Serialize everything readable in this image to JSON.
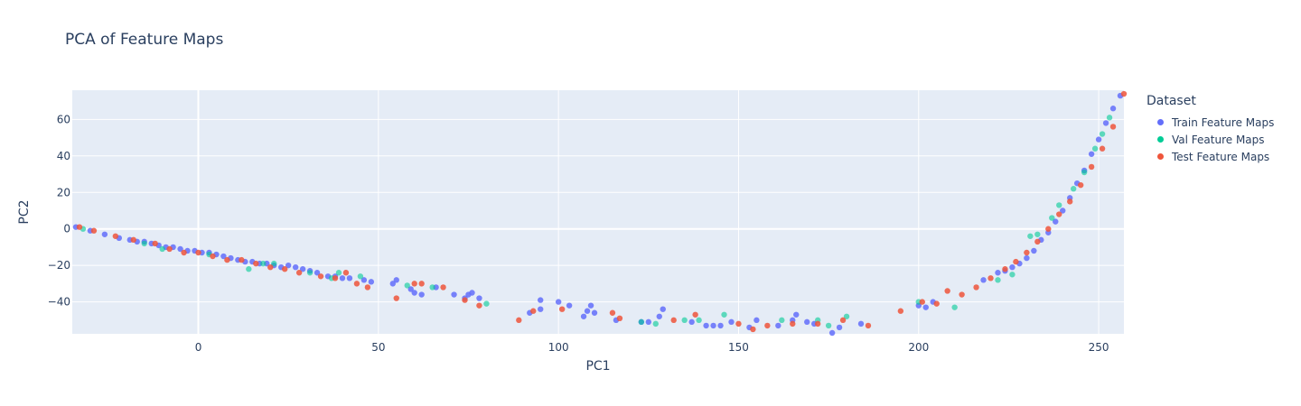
{
  "chart_data": {
    "type": "scatter",
    "title": "PCA of Feature Maps",
    "xlabel": "PC1",
    "ylabel": "PC2",
    "xlim": [
      -35,
      257
    ],
    "ylim": [
      -57.5,
      76
    ],
    "xticks": [
      0,
      50,
      100,
      150,
      200,
      250
    ],
    "yticks": [
      -40,
      -20,
      0,
      20,
      40,
      60
    ],
    "grid": true,
    "legend_title": "Dataset",
    "legend_position": "right",
    "background": "#e5ecf6",
    "series": [
      {
        "name": "Train Feature Maps",
        "color": "#636efa",
        "x": [
          -34,
          -30,
          -26,
          -22,
          -19,
          -17,
          -15,
          -13,
          -11,
          -9,
          -7,
          -5,
          -3,
          -1,
          1,
          3,
          5,
          7,
          9,
          11,
          13,
          15,
          17,
          19,
          21,
          23,
          25,
          27,
          29,
          31,
          33,
          36,
          38,
          40,
          42,
          46,
          48,
          54,
          55,
          59,
          60,
          62,
          66,
          71,
          74,
          75,
          76,
          78,
          92,
          95,
          95,
          100,
          103,
          107,
          108,
          109,
          110,
          116,
          123,
          125,
          128,
          129,
          137,
          141,
          143,
          145,
          148,
          153,
          155,
          161,
          165,
          166,
          169,
          171,
          176,
          178,
          184,
          200,
          202,
          204,
          218,
          222,
          224,
          226,
          228,
          230,
          232,
          234,
          236,
          238,
          240,
          242,
          244,
          246,
          248,
          250,
          252,
          254,
          256
        ],
        "y": [
          1,
          -1,
          -3,
          -5,
          -6,
          -7,
          -7,
          -8,
          -9,
          -10,
          -10,
          -11,
          -12,
          -12,
          -13,
          -13,
          -14,
          -15,
          -16,
          -17,
          -18,
          -18,
          -19,
          -19,
          -20,
          -21,
          -20,
          -21,
          -22,
          -23,
          -24,
          -26,
          -26,
          -27,
          -27,
          -28,
          -29,
          -30,
          -28,
          -33,
          -35,
          -36,
          -32,
          -36,
          -38,
          -36,
          -35,
          -38,
          -46,
          -44,
          -39,
          -40,
          -42,
          -48,
          -45,
          -42,
          -46,
          -50,
          -51,
          -51,
          -48,
          -44,
          -51,
          -53,
          -53,
          -53,
          -51,
          -54,
          -50,
          -53,
          -50,
          -47,
          -51,
          -52,
          -57,
          -54,
          -52,
          -42,
          -43,
          -40,
          -28,
          -24,
          -23,
          -21,
          -19,
          -16,
          -12,
          -6,
          -2,
          4,
          10,
          17,
          25,
          32,
          41,
          49,
          58,
          66,
          73
        ]
      },
      {
        "name": "Val Feature Maps",
        "color": "#00cc96",
        "x": [
          -32,
          -15,
          -10,
          3,
          14,
          18,
          21,
          31,
          37,
          39,
          45,
          58,
          65,
          80,
          123,
          127,
          135,
          139,
          146,
          162,
          172,
          175,
          180,
          200,
          210,
          222,
          226,
          231,
          233,
          237,
          239,
          243,
          246,
          249,
          251,
          253
        ],
        "y": [
          0,
          -8,
          -11,
          -14,
          -22,
          -19,
          -19,
          -24,
          -27,
          -24,
          -26,
          -31,
          -32,
          -41,
          -51,
          -52,
          -50,
          -50,
          -47,
          -50,
          -50,
          -53,
          -48,
          -40,
          -43,
          -28,
          -25,
          -4,
          -3,
          6,
          13,
          22,
          31,
          44,
          52,
          61
        ],
        "opacity": 0.6
      },
      {
        "name": "Test Feature Maps",
        "color": "#ef553b",
        "x": [
          -33,
          -29,
          -23,
          -18,
          -12,
          -8,
          -4,
          0,
          4,
          8,
          12,
          16,
          20,
          24,
          28,
          34,
          38,
          41,
          44,
          47,
          55,
          60,
          62,
          68,
          74,
          78,
          89,
          93,
          101,
          115,
          117,
          132,
          138,
          150,
          154,
          158,
          165,
          172,
          179,
          186,
          195,
          201,
          205,
          208,
          212,
          216,
          220,
          224,
          227,
          230,
          233,
          236,
          239,
          242,
          245,
          248,
          251,
          254,
          257
        ],
        "y": [
          1,
          -1,
          -4,
          -6,
          -8,
          -11,
          -13,
          -13,
          -15,
          -17,
          -17,
          -19,
          -21,
          -22,
          -24,
          -26,
          -27,
          -24,
          -30,
          -32,
          -38,
          -30,
          -30,
          -32,
          -39,
          -42,
          -50,
          -45,
          -44,
          -46,
          -49,
          -50,
          -47,
          -52,
          -55,
          -53,
          -52,
          -52,
          -50,
          -53,
          -45,
          -40,
          -41,
          -34,
          -36,
          -32,
          -27,
          -22,
          -18,
          -13,
          -7,
          0,
          8,
          15,
          24,
          34,
          44,
          56,
          74
        ]
      }
    ]
  }
}
